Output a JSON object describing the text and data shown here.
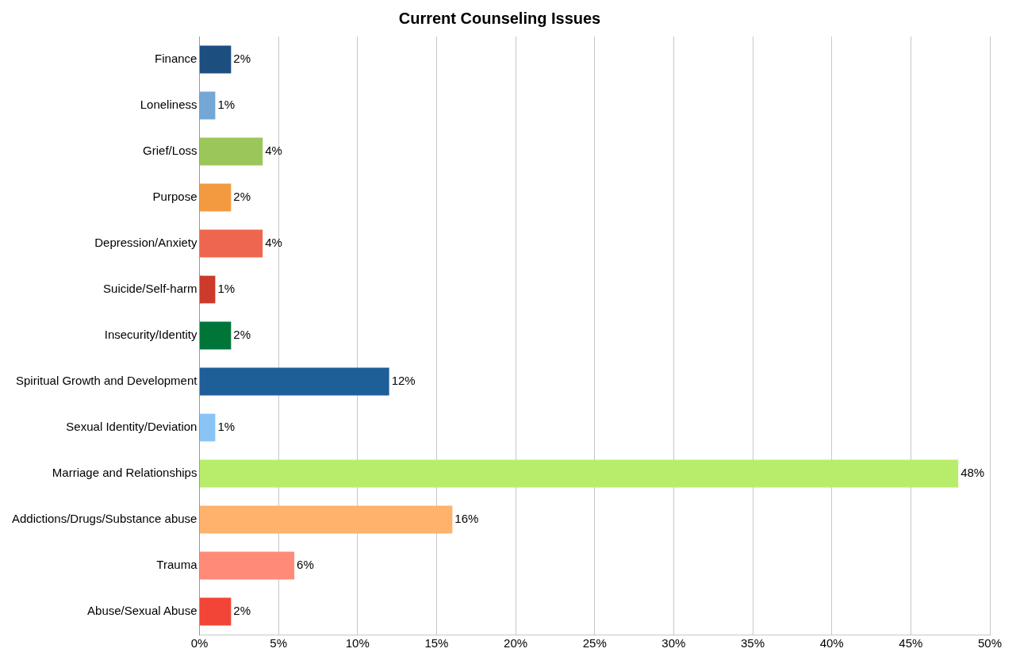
{
  "chart_data": {
    "type": "bar",
    "orientation": "horizontal",
    "title": "Current Counseling Issues",
    "categories": [
      "Finance",
      "Loneliness",
      "Grief/Loss",
      "Purpose",
      "Depression/Anxiety",
      "Suicide/Self-harm",
      "Insecurity/Identity",
      "Spiritual Growth and Development",
      "Sexual Identity/Deviation",
      "Marriage and Relationships",
      "Addictions/Drugs/Substance abuse",
      "Trauma",
      "Abuse/Sexual Abuse"
    ],
    "values": [
      2,
      1,
      4,
      2,
      4,
      1,
      2,
      12,
      1,
      48,
      16,
      6,
      2
    ],
    "value_labels": [
      "2%",
      "1%",
      "4%",
      "2%",
      "4%",
      "1%",
      "2%",
      "12%",
      "1%",
      "48%",
      "16%",
      "6%",
      "2%"
    ],
    "colors": [
      "#1c4f80",
      "#72a7d6",
      "#9bc75a",
      "#f39a40",
      "#ef6650",
      "#cc3a2b",
      "#00753a",
      "#1f5f99",
      "#89c4f4",
      "#b8ed6b",
      "#ffb26b",
      "#ff8a78",
      "#f24437"
    ],
    "xlim": [
      0,
      50
    ],
    "xticks": [
      {
        "value": 0,
        "label": "0%"
      },
      {
        "value": 5,
        "label": "5%"
      },
      {
        "value": 10,
        "label": "10%"
      },
      {
        "value": 15,
        "label": "15%"
      },
      {
        "value": 20,
        "label": "20%"
      },
      {
        "value": 25,
        "label": "25%"
      },
      {
        "value": 30,
        "label": "30%"
      },
      {
        "value": 35,
        "label": "35%"
      },
      {
        "value": 40,
        "label": "40%"
      },
      {
        "value": 45,
        "label": "45%"
      },
      {
        "value": 50,
        "label": "50%"
      }
    ],
    "grid": "x",
    "legend": false
  }
}
